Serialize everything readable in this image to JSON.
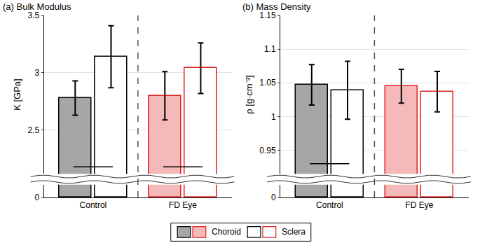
{
  "chart_data": [
    {
      "type": "bar",
      "title": "(a) Bulk Modulus",
      "ylabel": "K [GPa]",
      "categories": [
        "Control",
        "FD Eye"
      ],
      "series": [
        {
          "name": "Choroid",
          "colors": [
            "#a6a6a6",
            "#f6b9b9"
          ],
          "values": [
            2.78,
            2.8
          ],
          "errors": [
            0.15,
            0.21
          ]
        },
        {
          "name": "Sclera",
          "colors": [
            "#ffffff",
            "#ffffff"
          ],
          "values": [
            3.14,
            3.04
          ],
          "errors": [
            0.27,
            0.22
          ]
        }
      ],
      "edge_colors": [
        "#000000",
        "#e0201f"
      ],
      "ylim": [
        2.12,
        3.5
      ],
      "yticks": [
        2.5,
        3,
        3.5
      ],
      "lower_axis": {
        "ylim": [
          0,
          0.2
        ],
        "yticks": [
          0
        ]
      },
      "significance": [
        {
          "category": "Control",
          "y": 2.18
        },
        {
          "category": "FD Eye",
          "y": 2.18
        }
      ],
      "grid": true,
      "legend": "bottom"
    },
    {
      "type": "bar",
      "title": "(b) Mass Density",
      "ylabel": "ρ [g·cm⁻³]",
      "categories": [
        "Control",
        "FD Eye"
      ],
      "series": [
        {
          "name": "Choroid",
          "colors": [
            "#a6a6a6",
            "#f6b9b9"
          ],
          "values": [
            1.047,
            1.045
          ],
          "errors": [
            0.03,
            0.025
          ]
        },
        {
          "name": "Sclera",
          "colors": [
            "#ffffff",
            "#ffffff"
          ],
          "values": [
            1.039,
            1.037
          ],
          "errors": [
            0.043,
            0.03
          ]
        }
      ],
      "edge_colors": [
        "#000000",
        "#e0201f"
      ],
      "ylim": [
        0.915,
        1.15
      ],
      "yticks": [
        0.95,
        1,
        1.05,
        1.1,
        1.15
      ],
      "lower_axis": {
        "ylim": [
          0,
          0.03
        ],
        "yticks": [
          0
        ]
      },
      "significance": [
        {
          "category": "Control",
          "y": 0.93
        }
      ],
      "grid": true,
      "legend": "bottom"
    }
  ]
}
